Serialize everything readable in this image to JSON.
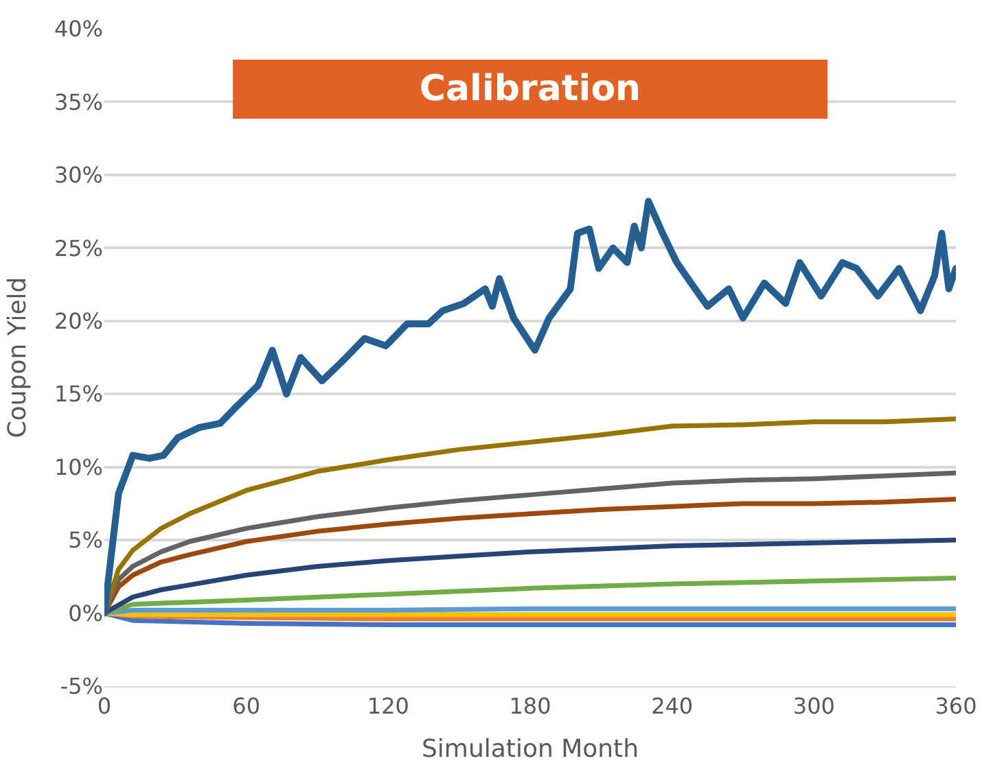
{
  "chart_data": {
    "type": "line",
    "title": "Calibration",
    "xlabel": "Simulation Month",
    "ylabel": "Coupon Yield",
    "xlim": [
      0,
      360
    ],
    "xticks": [
      0,
      60,
      120,
      180,
      240,
      300,
      360
    ],
    "ylim": [
      -5,
      40
    ],
    "yticks": [
      {
        "value": -5,
        "label": "-5%"
      },
      {
        "value": 0,
        "label": "0%"
      },
      {
        "value": 5,
        "label": "5%"
      },
      {
        "value": 10,
        "label": "10%"
      },
      {
        "value": 15,
        "label": "15%"
      },
      {
        "value": 20,
        "label": "20%"
      },
      {
        "value": 25,
        "label": "25%"
      },
      {
        "value": 30,
        "label": "30%"
      },
      {
        "value": 35,
        "label": "35%"
      },
      {
        "value": 40,
        "label": "40%"
      }
    ],
    "grid": "y",
    "marker": "none",
    "line_style": "solid",
    "series": [
      {
        "color": "#4472c4",
        "x": [
          0,
          12,
          60,
          120,
          180,
          240,
          300,
          360
        ],
        "values": [
          0,
          -0.5,
          -0.7,
          -0.8,
          -0.8,
          -0.8,
          -0.8,
          -0.8
        ]
      },
      {
        "color": "#ed7d31",
        "x": [
          0,
          12,
          60,
          120,
          180,
          240,
          300,
          360
        ],
        "values": [
          0,
          -0.2,
          -0.3,
          -0.4,
          -0.4,
          -0.4,
          -0.4,
          -0.4
        ]
      },
      {
        "color": "#ffc000",
        "x": [
          0,
          12,
          60,
          120,
          180,
          240,
          300,
          360
        ],
        "values": [
          0,
          -0.1,
          -0.1,
          -0.1,
          -0.1,
          -0.1,
          -0.1,
          -0.1
        ]
      },
      {
        "color": "#5b9bd5",
        "x": [
          0,
          12,
          60,
          120,
          180,
          240,
          300,
          360
        ],
        "values": [
          0,
          0.2,
          0.2,
          0.2,
          0.3,
          0.3,
          0.3,
          0.3
        ]
      },
      {
        "color": "#70ad47",
        "x": [
          0,
          12,
          60,
          120,
          180,
          240,
          300,
          360
        ],
        "values": [
          0,
          0.6,
          0.9,
          1.3,
          1.7,
          2.0,
          2.2,
          2.4
        ]
      },
      {
        "color": "#264478",
        "x": [
          0,
          12,
          24,
          60,
          90,
          120,
          150,
          180,
          210,
          240,
          270,
          300,
          330,
          360
        ],
        "values": [
          0,
          1.1,
          1.6,
          2.6,
          3.2,
          3.6,
          3.9,
          4.2,
          4.4,
          4.6,
          4.7,
          4.8,
          4.9,
          5.0
        ]
      },
      {
        "color": "#9e480e",
        "x": [
          0,
          6,
          12,
          24,
          36,
          60,
          90,
          120,
          150,
          180,
          210,
          240,
          270,
          300,
          330,
          360
        ],
        "values": [
          0,
          1.8,
          2.6,
          3.5,
          4.0,
          4.9,
          5.6,
          6.1,
          6.5,
          6.8,
          7.1,
          7.3,
          7.5,
          7.5,
          7.6,
          7.8
        ]
      },
      {
        "color": "#636363",
        "x": [
          0,
          6,
          12,
          24,
          36,
          60,
          90,
          120,
          150,
          180,
          210,
          240,
          270,
          300,
          330,
          360
        ],
        "values": [
          0,
          2.3,
          3.2,
          4.2,
          4.9,
          5.8,
          6.6,
          7.2,
          7.7,
          8.1,
          8.5,
          8.9,
          9.1,
          9.2,
          9.4,
          9.6
        ]
      },
      {
        "color": "#997300",
        "x": [
          0,
          6,
          12,
          24,
          36,
          60,
          90,
          120,
          150,
          180,
          210,
          240,
          270,
          300,
          330,
          360
        ],
        "values": [
          0,
          3.0,
          4.3,
          5.8,
          6.8,
          8.4,
          9.7,
          10.5,
          11.2,
          11.7,
          12.2,
          12.8,
          12.9,
          13.1,
          13.1,
          13.3
        ]
      },
      {
        "color": "#255e91",
        "x": [
          0,
          6,
          12,
          19,
          25,
          31,
          40,
          49,
          55,
          65,
          71,
          77,
          83,
          92,
          101,
          110,
          119,
          128,
          137,
          143,
          152,
          161,
          164,
          167,
          173,
          182,
          188,
          197,
          200,
          205,
          209,
          215,
          221,
          224,
          227,
          230,
          236,
          242,
          248,
          255,
          264,
          270,
          279,
          288,
          294,
          303,
          312,
          318,
          327,
          336,
          345,
          351,
          354,
          357,
          360
        ],
        "values": [
          0,
          8.2,
          10.8,
          10.6,
          10.8,
          12.0,
          12.7,
          13.0,
          14.0,
          15.6,
          18.0,
          15.0,
          17.5,
          15.9,
          17.3,
          18.8,
          18.3,
          19.8,
          19.8,
          20.7,
          21.2,
          22.2,
          21.0,
          22.9,
          20.2,
          18.0,
          20.2,
          22.2,
          26.0,
          26.3,
          23.6,
          25.0,
          24.0,
          26.5,
          25.0,
          28.2,
          26.0,
          24.0,
          22.6,
          21.0,
          22.2,
          20.2,
          22.6,
          21.2,
          24.0,
          21.7,
          24.0,
          23.6,
          21.7,
          23.6,
          20.7,
          23.1,
          26.0,
          22.2,
          23.6
        ]
      }
    ]
  }
}
